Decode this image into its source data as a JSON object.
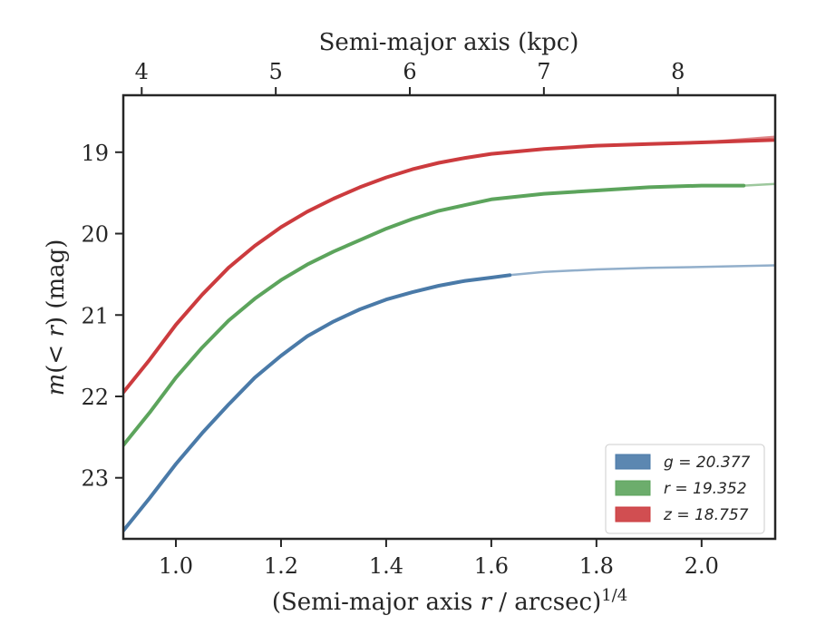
{
  "chart_data": {
    "type": "line",
    "xlabel_prefix": "(Semi-major axis ",
    "xlabel_var": "r",
    "xlabel_mid": " / arcsec)",
    "xlabel_sup": "1/4",
    "top_xlabel": "Semi-major axis (kpc)",
    "ylabel_pre": "m",
    "ylabel_mid": "(< ",
    "ylabel_var": "r",
    "ylabel_post": ") (mag)",
    "xlim": [
      0.9,
      2.14
    ],
    "ylim": [
      23.75,
      18.3
    ],
    "y_inverted": true,
    "x_ticks": [
      1.0,
      1.2,
      1.4,
      1.6,
      1.8,
      2.0
    ],
    "x_tick_labels": [
      "1.0",
      "1.2",
      "1.4",
      "1.6",
      "1.8",
      "2.0"
    ],
    "y_ticks": [
      19,
      20,
      21,
      22,
      23
    ],
    "y_tick_labels": [
      "19",
      "20",
      "21",
      "22",
      "23"
    ],
    "top_ticks_kpc": [
      4,
      5,
      6,
      7,
      8
    ],
    "top_tick_labels": [
      "4",
      "5",
      "6",
      "7",
      "8"
    ],
    "top_tick_positions_x": [
      0.935,
      1.19,
      1.445,
      1.7,
      1.955
    ],
    "grid": false,
    "legend_position": "lower-right",
    "series": [
      {
        "band": "g",
        "legend_label": "g = 20.377",
        "color": "#4a7aa8",
        "measured": [
          [
            0.9,
            23.65
          ],
          [
            0.95,
            23.25
          ],
          [
            1.0,
            22.83
          ],
          [
            1.05,
            22.45
          ],
          [
            1.1,
            22.1
          ],
          [
            1.15,
            21.77
          ],
          [
            1.2,
            21.5
          ],
          [
            1.25,
            21.26
          ],
          [
            1.3,
            21.08
          ],
          [
            1.35,
            20.93
          ],
          [
            1.4,
            20.81
          ],
          [
            1.45,
            20.72
          ],
          [
            1.5,
            20.64
          ],
          [
            1.55,
            20.58
          ],
          [
            1.6,
            20.54
          ],
          [
            1.635,
            20.51
          ]
        ],
        "extrapolated": [
          [
            1.635,
            20.51
          ],
          [
            1.7,
            20.47
          ],
          [
            1.8,
            20.44
          ],
          [
            1.9,
            20.42
          ],
          [
            2.0,
            20.41
          ],
          [
            2.14,
            20.39
          ]
        ]
      },
      {
        "band": "r",
        "legend_label": "r = 19.352",
        "color": "#5ca45c",
        "measured": [
          [
            0.9,
            22.6
          ],
          [
            0.95,
            22.2
          ],
          [
            1.0,
            21.77
          ],
          [
            1.05,
            21.4
          ],
          [
            1.1,
            21.07
          ],
          [
            1.15,
            20.8
          ],
          [
            1.2,
            20.57
          ],
          [
            1.25,
            20.38
          ],
          [
            1.3,
            20.22
          ],
          [
            1.35,
            20.08
          ],
          [
            1.4,
            19.94
          ],
          [
            1.45,
            19.82
          ],
          [
            1.5,
            19.72
          ],
          [
            1.55,
            19.65
          ],
          [
            1.6,
            19.58
          ],
          [
            1.7,
            19.51
          ],
          [
            1.8,
            19.47
          ],
          [
            1.9,
            19.43
          ],
          [
            2.0,
            19.41
          ],
          [
            2.08,
            19.41
          ]
        ],
        "extrapolated": [
          [
            2.08,
            19.41
          ],
          [
            2.14,
            19.39
          ]
        ]
      },
      {
        "band": "z",
        "legend_label": "z = 18.757",
        "color": "#cc3b3e",
        "measured": [
          [
            0.9,
            21.95
          ],
          [
            0.95,
            21.55
          ],
          [
            1.0,
            21.12
          ],
          [
            1.05,
            20.75
          ],
          [
            1.1,
            20.42
          ],
          [
            1.15,
            20.15
          ],
          [
            1.2,
            19.92
          ],
          [
            1.25,
            19.73
          ],
          [
            1.3,
            19.57
          ],
          [
            1.35,
            19.43
          ],
          [
            1.4,
            19.31
          ],
          [
            1.45,
            19.21
          ],
          [
            1.5,
            19.13
          ],
          [
            1.55,
            19.07
          ],
          [
            1.6,
            19.02
          ],
          [
            1.7,
            18.96
          ],
          [
            1.8,
            18.92
          ],
          [
            1.9,
            18.9
          ],
          [
            2.0,
            18.88
          ],
          [
            2.14,
            18.85
          ]
        ],
        "extrapolated": [
          [
            2.0,
            18.88
          ],
          [
            2.14,
            18.81
          ]
        ]
      }
    ]
  }
}
